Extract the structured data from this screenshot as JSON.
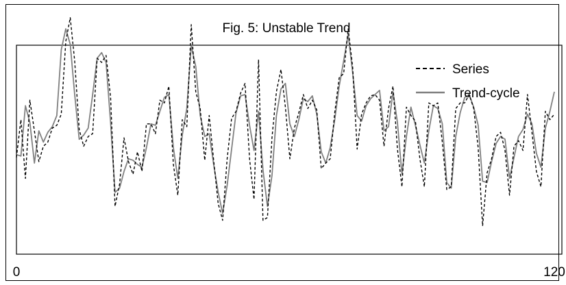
{
  "chart_data": {
    "type": "line",
    "title": "Fig. 5: Unstable Trend",
    "xlabel": "",
    "ylabel": "",
    "xlim": [
      0,
      120
    ],
    "x_ticks": [
      "0",
      "120"
    ],
    "grid": false,
    "legend_position": "top-right",
    "series": [
      {
        "name": "Series",
        "style": "dashed",
        "color": "#000000",
        "values": [
          0.55,
          0.82,
          0.4,
          0.96,
          0.74,
          0.52,
          0.63,
          0.66,
          0.76,
          0.78,
          0.86,
          1.38,
          1.55,
          1.24,
          0.75,
          0.63,
          0.7,
          0.72,
          1.26,
          1.23,
          1.28,
          0.98,
          0.2,
          0.36,
          0.69,
          0.52,
          0.43,
          0.59,
          0.45,
          0.79,
          0.79,
          0.72,
          0.96,
          0.94,
          1.06,
          0.5,
          0.28,
          0.82,
          0.77,
          1.5,
          1.02,
          0.9,
          0.53,
          0.85,
          0.53,
          0.22,
          0.1,
          0.54,
          0.83,
          0.88,
          1.01,
          1.08,
          0.54,
          0.25,
          1.25,
          0.1,
          0.12,
          0.69,
          1.02,
          1.18,
          0.91,
          0.54,
          0.76,
          0.87,
          1.0,
          0.9,
          0.96,
          0.89,
          0.47,
          0.51,
          0.54,
          0.87,
          1.12,
          1.15,
          1.47,
          1.2,
          0.61,
          0.86,
          0.94,
          0.99,
          1.0,
          0.96,
          0.63,
          0.9,
          1.06,
          0.61,
          0.34,
          0.91,
          0.85,
          0.81,
          0.54,
          0.34,
          0.94,
          0.92,
          0.94,
          0.66,
          0.32,
          0.34,
          0.9,
          0.94,
          0.94,
          1.0,
          0.9,
          0.62,
          0.06,
          0.44,
          0.54,
          0.7,
          0.73,
          0.6,
          0.28,
          0.63,
          0.67,
          0.6,
          1.0,
          0.73,
          0.45,
          0.34,
          0.88,
          0.82,
          0.86
        ]
      },
      {
        "name": "Trend-cycle",
        "style": "solid",
        "color": "#808080",
        "values": [
          0.57,
          0.56,
          0.92,
          0.8,
          0.51,
          0.74,
          0.66,
          0.73,
          0.77,
          0.85,
          1.32,
          1.47,
          1.36,
          1.0,
          0.68,
          0.71,
          0.76,
          1.0,
          1.26,
          1.3,
          1.23,
          0.8,
          0.3,
          0.33,
          0.45,
          0.54,
          0.53,
          0.5,
          0.48,
          0.62,
          0.79,
          0.78,
          0.88,
          0.98,
          1.0,
          0.62,
          0.4,
          0.71,
          0.9,
          1.35,
          1.2,
          0.85,
          0.7,
          0.72,
          0.5,
          0.3,
          0.15,
          0.35,
          0.61,
          0.87,
          0.99,
          1.0,
          0.78,
          0.6,
          0.88,
          0.46,
          0.2,
          0.42,
          0.85,
          1.04,
          1.08,
          0.79,
          0.7,
          0.82,
          0.97,
          0.95,
          0.99,
          0.86,
          0.59,
          0.51,
          0.62,
          0.82,
          1.06,
          1.24,
          1.43,
          1.16,
          0.85,
          0.81,
          0.92,
          0.97,
          1.0,
          1.03,
          0.74,
          0.77,
          1.02,
          0.8,
          0.43,
          0.7,
          0.91,
          0.78,
          0.64,
          0.51,
          0.74,
          0.92,
          0.9,
          0.79,
          0.37,
          0.33,
          0.7,
          0.87,
          0.98,
          1.0,
          0.91,
          0.78,
          0.38,
          0.37,
          0.52,
          0.65,
          0.7,
          0.68,
          0.4,
          0.55,
          0.7,
          0.75,
          0.86,
          0.79,
          0.58,
          0.48,
          0.76,
          0.88,
          1.02
        ]
      }
    ]
  }
}
